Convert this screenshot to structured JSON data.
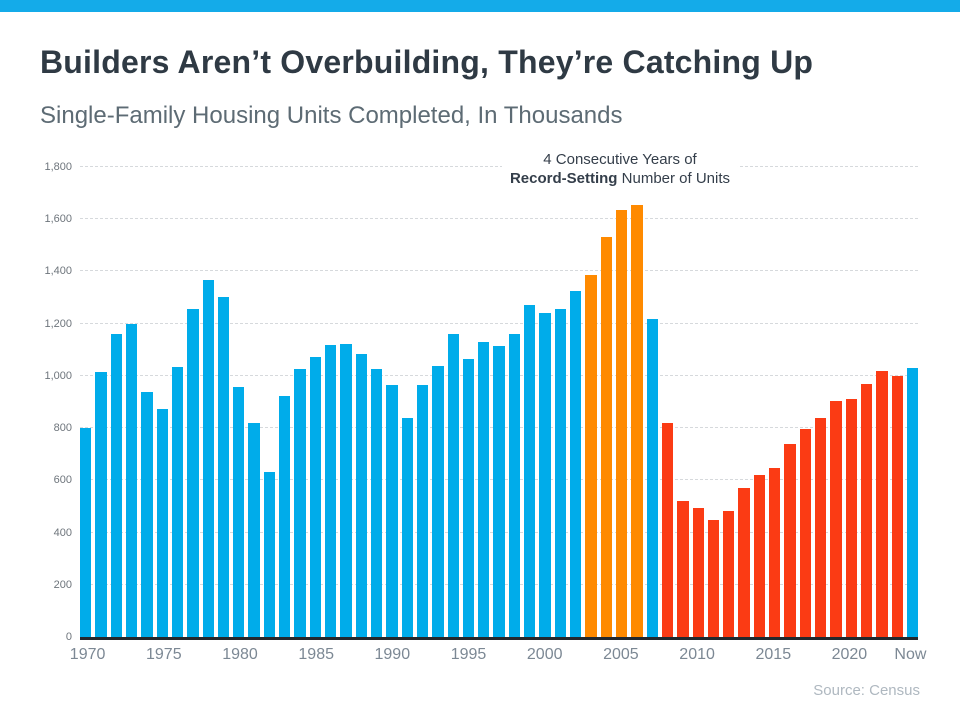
{
  "page": {
    "accent_bar_color": "#14ABE9"
  },
  "header": {
    "title": "Builders Aren’t Overbuilding, They’re Catching Up",
    "subtitle": "Single-Family Housing Units Completed, In Thousands"
  },
  "annotation": {
    "line1": "4 Consecutive Years of",
    "line2_bold": "Record-Setting",
    "line2_rest": " Number of Units"
  },
  "footer": {
    "source": "Source: Census"
  },
  "chart_data": {
    "type": "bar",
    "title": "Builders Aren’t Overbuilding, They’re Catching Up",
    "subtitle": "Single-Family Housing Units Completed, In Thousands",
    "xlabel": "",
    "ylabel": "Units completed (thousands)",
    "ylim": [
      0,
      1800
    ],
    "ytick_step": 200,
    "ytick_labels": [
      "0",
      "200",
      "400",
      "600",
      "800",
      "1,000",
      "1,200",
      "1,400",
      "1,600",
      "1,800"
    ],
    "grid": "horizontal-dashed",
    "legend": "none",
    "annotation": "4 Consecutive Years of Record-Setting Number of Units (2003–2006 highlighted in orange)",
    "x_tick_labels_shown": [
      "1970",
      "1975",
      "1980",
      "1985",
      "1990",
      "1995",
      "2000",
      "2005",
      "2010",
      "2015",
      "2020",
      "Now"
    ],
    "categories": [
      "1970",
      "1971",
      "1972",
      "1973",
      "1974",
      "1975",
      "1976",
      "1977",
      "1978",
      "1979",
      "1980",
      "1981",
      "1982",
      "1983",
      "1984",
      "1985",
      "1986",
      "1987",
      "1988",
      "1989",
      "1990",
      "1991",
      "1992",
      "1993",
      "1994",
      "1995",
      "1996",
      "1997",
      "1998",
      "1999",
      "2000",
      "2001",
      "2002",
      "2003",
      "2004",
      "2005",
      "2006",
      "2007",
      "2008",
      "2009",
      "2010",
      "2011",
      "2012",
      "2013",
      "2014",
      "2015",
      "2016",
      "2017",
      "2018",
      "2019",
      "2020",
      "2021",
      "2022",
      "2023",
      "Now"
    ],
    "values": [
      802,
      1014,
      1160,
      1197,
      940,
      875,
      1034,
      1258,
      1369,
      1301,
      957,
      819,
      632,
      924,
      1025,
      1072,
      1120,
      1123,
      1085,
      1026,
      966,
      838,
      964,
      1039,
      1160,
      1066,
      1129,
      1116,
      1160,
      1270,
      1242,
      1256,
      1325,
      1386,
      1532,
      1636,
      1654,
      1218,
      819,
      520,
      496,
      447,
      483,
      569,
      620,
      648,
      738,
      795,
      840,
      903,
      912,
      971,
      1019,
      998,
      1030
    ],
    "bar_colors": [
      "blue",
      "blue",
      "blue",
      "blue",
      "blue",
      "blue",
      "blue",
      "blue",
      "blue",
      "blue",
      "blue",
      "blue",
      "blue",
      "blue",
      "blue",
      "blue",
      "blue",
      "blue",
      "blue",
      "blue",
      "blue",
      "blue",
      "blue",
      "blue",
      "blue",
      "blue",
      "blue",
      "blue",
      "blue",
      "blue",
      "blue",
      "blue",
      "blue",
      "orange",
      "orange",
      "orange",
      "orange",
      "blue",
      "red",
      "red",
      "red",
      "red",
      "red",
      "red",
      "red",
      "red",
      "red",
      "red",
      "red",
      "red",
      "red",
      "red",
      "red",
      "red",
      "blue"
    ],
    "palette": {
      "blue": "#00ACEA",
      "orange": "#FF8A00",
      "red": "#FB3B14"
    }
  }
}
